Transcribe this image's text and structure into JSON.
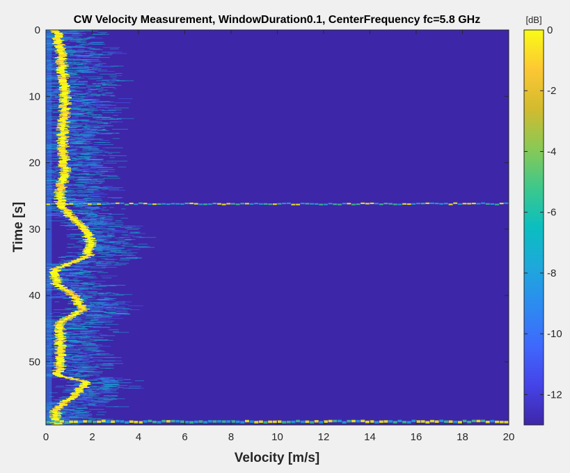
{
  "chart_data": {
    "type": "heatmap",
    "title": "CW Velocity Measurement, WindowDuration0.1, CenterFrequency fc=5.8 GHz",
    "xlabel": "Velocity [m/s]",
    "ylabel": "Time [s]",
    "xlim": [
      0,
      20
    ],
    "ylim": [
      0,
      59.5
    ],
    "y_direction": "reverse",
    "x_ticks": [
      0,
      2,
      4,
      6,
      8,
      10,
      12,
      14,
      16,
      18,
      20
    ],
    "x_tick_labels": [
      "0",
      "2",
      "4",
      "6",
      "8",
      "10",
      "12",
      "14",
      "16",
      "18",
      "20"
    ],
    "y_ticks": [
      0,
      10,
      20,
      30,
      40,
      50
    ],
    "y_tick_labels": [
      "0",
      "10",
      "20",
      "30",
      "40",
      "50"
    ],
    "colorbar": {
      "label": "[dB]",
      "range": [
        -13,
        0
      ],
      "ticks": [
        0,
        -2,
        -4,
        -6,
        -8,
        -10,
        -12
      ],
      "tick_labels": [
        "0",
        "-2",
        "-4",
        "-6",
        "-8",
        "-10",
        "-12"
      ],
      "colormap": "parula"
    },
    "background_color": "#3e26a8",
    "dominant_trace": {
      "description_values": "peak velocity (m/s) vs time (s)",
      "time": [
        0,
        3,
        6,
        9,
        12,
        15,
        18,
        21,
        24,
        26,
        28,
        30,
        32,
        34,
        36,
        38,
        40,
        42,
        44,
        46,
        48,
        50,
        52,
        53,
        55,
        57,
        59
      ],
      "velocity": [
        0.4,
        0.6,
        0.7,
        0.8,
        0.8,
        0.7,
        0.7,
        0.8,
        0.6,
        0.6,
        1.0,
        1.7,
        1.9,
        1.8,
        0.4,
        0.4,
        1.2,
        1.6,
        0.6,
        0.6,
        0.6,
        0.6,
        0.5,
        1.8,
        1.2,
        0.4,
        0.4
      ]
    },
    "broadband_event_times": [
      26.2,
      59.0
    ]
  }
}
